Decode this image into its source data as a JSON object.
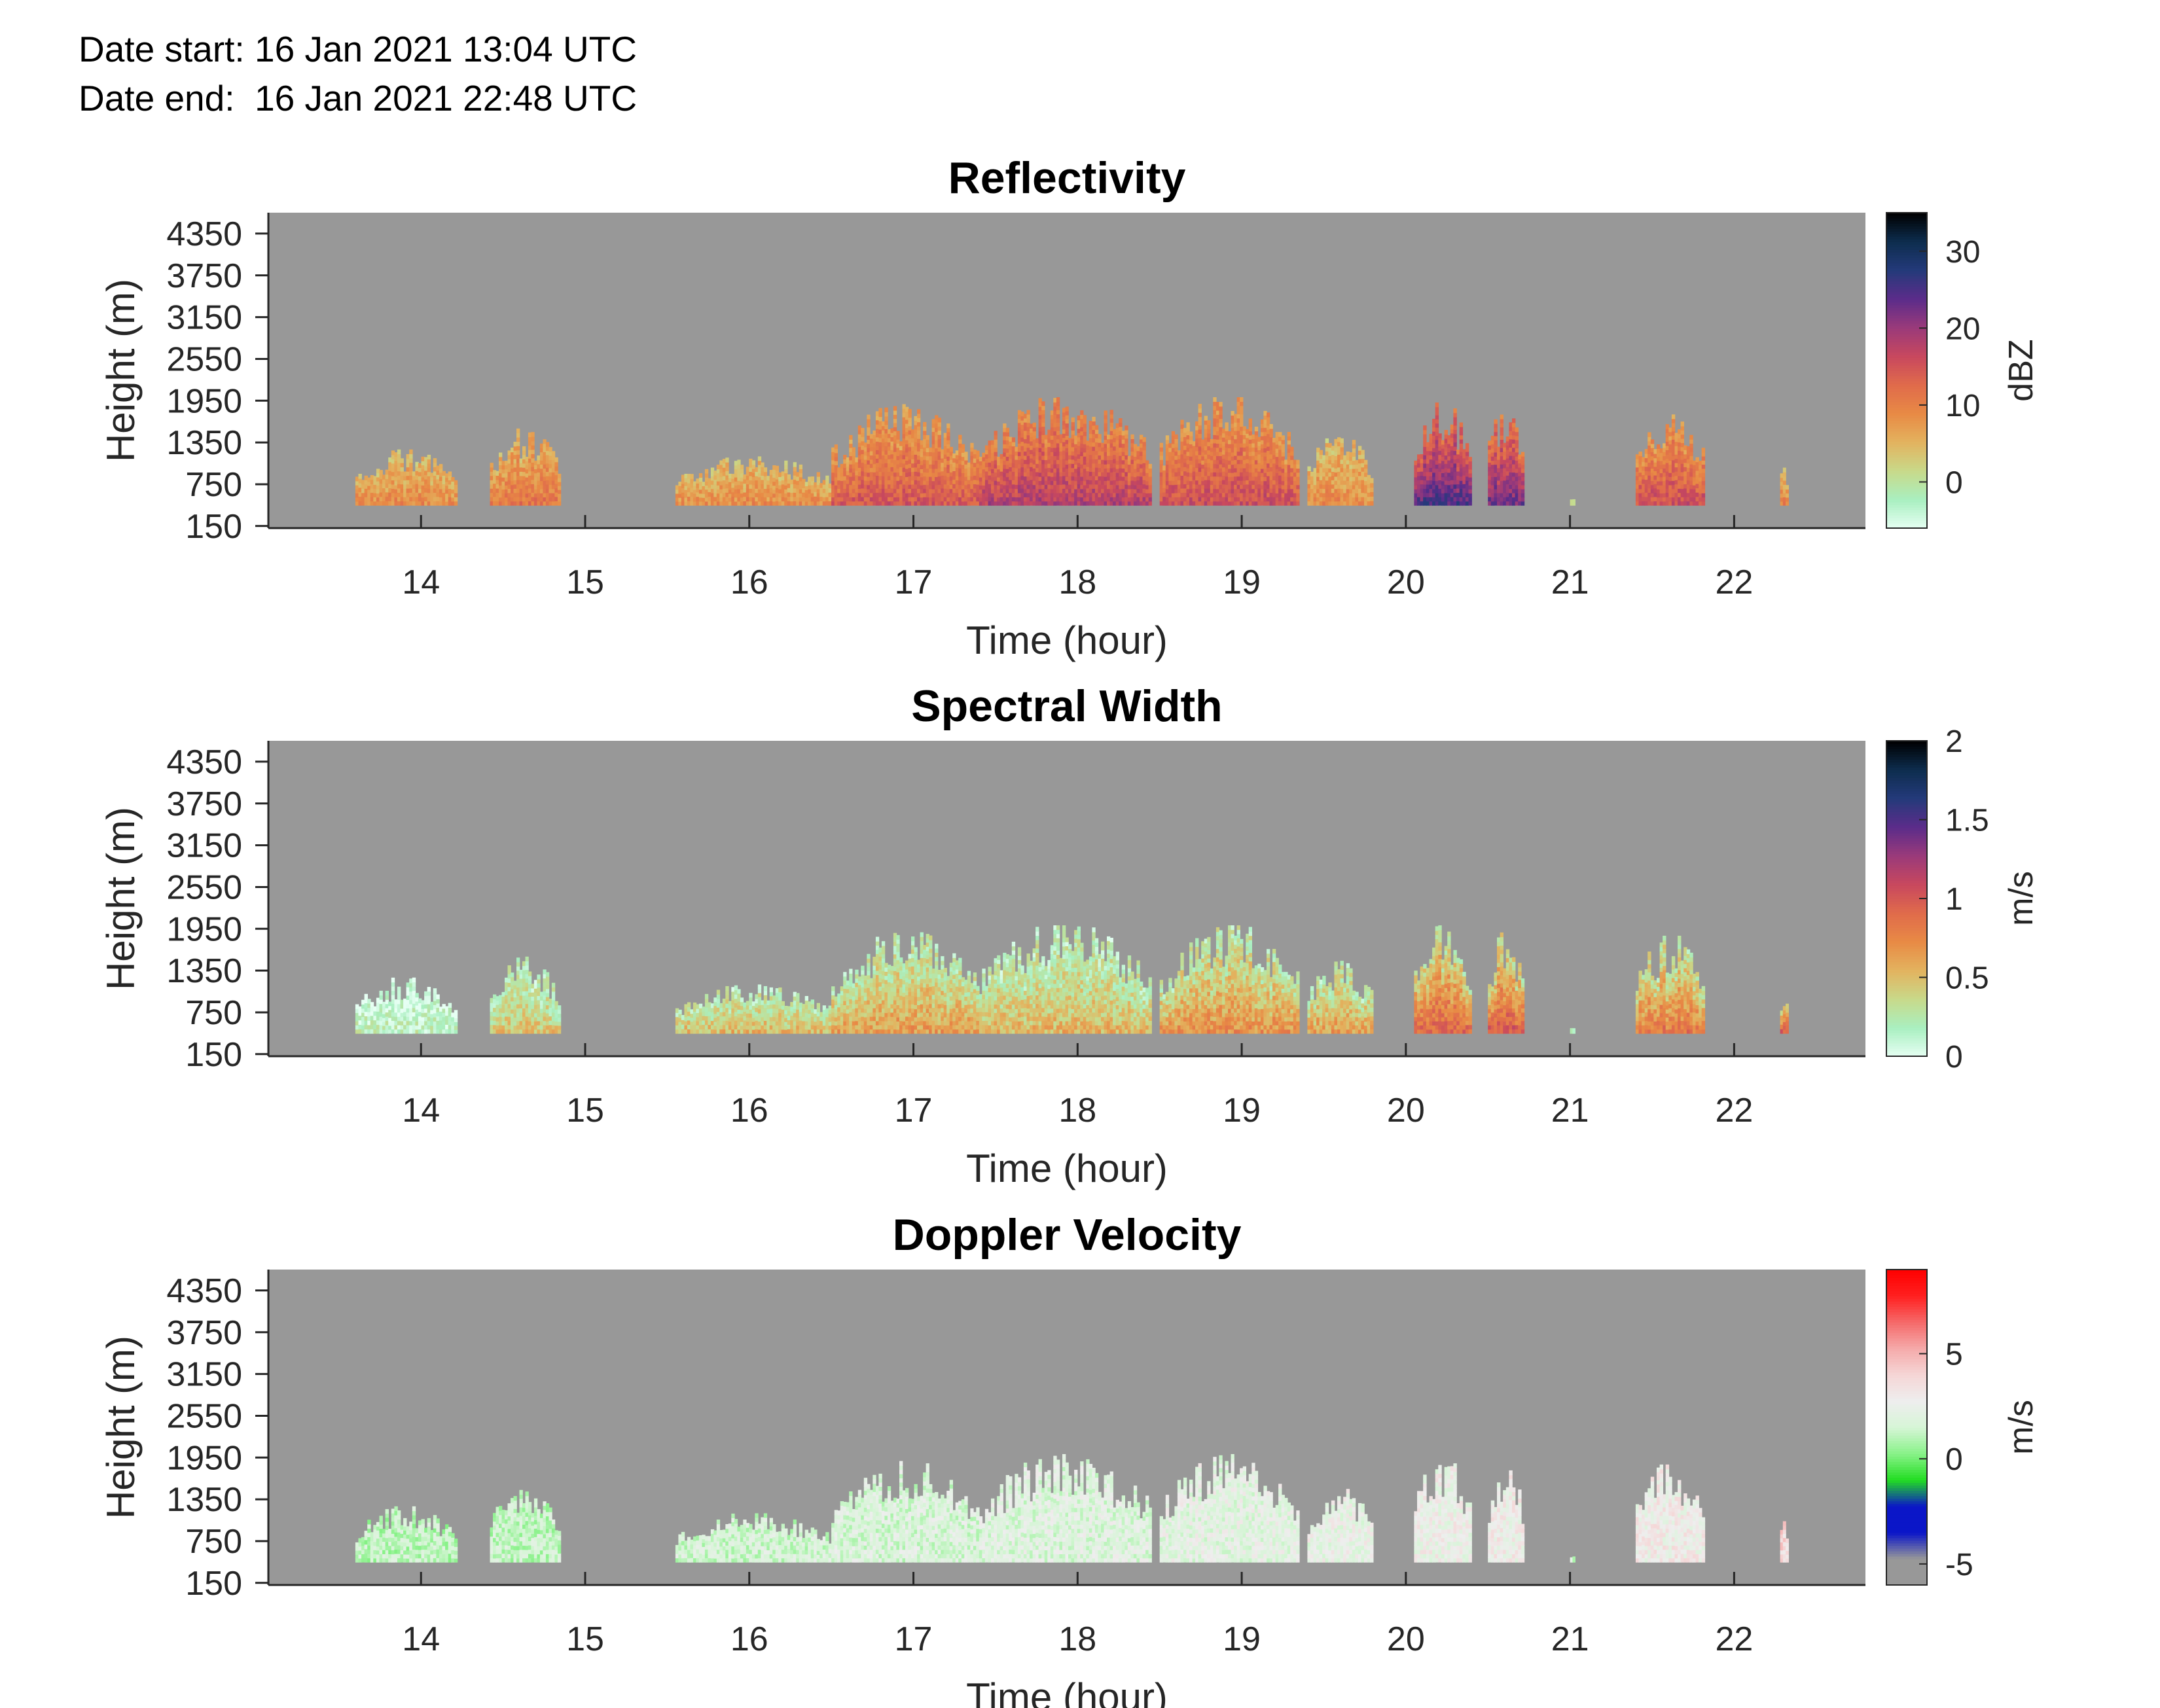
{
  "header": {
    "date_start_label": "Date start:",
    "date_start_value": "16 Jan 2021 13:04 UTC",
    "date_end_label": "Date end:",
    "date_end_value": "16 Jan 2021 22:48 UTC"
  },
  "colors": {
    "background_fill": "#989898",
    "reflectivity_colormap": [
      "#e6fff3",
      "#a9efc0",
      "#c8d98a",
      "#e3b35f",
      "#e88a45",
      "#e06b4b",
      "#c8485e",
      "#9a3a7a",
      "#5b2c8a",
      "#243a7a",
      "#0d2d4e",
      "#000000"
    ],
    "spectral_width_colormap": [
      "#e6fff3",
      "#a9efc0",
      "#c8d98a",
      "#e3b35f",
      "#e88a45",
      "#e06b4b",
      "#c8485e",
      "#9a3a7a",
      "#5b2c8a",
      "#243a7a",
      "#0d2d4e",
      "#000000"
    ],
    "doppler_colormap": [
      "#989898",
      "#989898",
      "#0b16c8",
      "#0b16c8",
      "#22dd22",
      "#88f288",
      "#d6f5d6",
      "#eeeeee",
      "#f5d6d6",
      "#f5aaaa",
      "#f56a6a",
      "#ff2020",
      "#ff0000"
    ]
  },
  "chart_data": [
    {
      "type": "heatmap",
      "title": "Reflectivity",
      "xlabel": "Time (hour)",
      "ylabel": "Height (m)",
      "xlim": [
        13.07,
        22.8
      ],
      "ylim": [
        120,
        4650
      ],
      "x_ticks": [
        "14",
        "15",
        "16",
        "17",
        "18",
        "19",
        "20",
        "21",
        "22"
      ],
      "y_ticks": [
        "150",
        "750",
        "1350",
        "1950",
        "2550",
        "3150",
        "3750",
        "4350"
      ],
      "colorbar": {
        "label": "dBZ",
        "range": [
          -6,
          35
        ],
        "ticks": [
          "0",
          "10",
          "20",
          "30"
        ]
      },
      "echo_segments": [
        {
          "start": 13.6,
          "end": 14.22,
          "top": 1250,
          "typical": 8
        },
        {
          "start": 14.42,
          "end": 14.85,
          "top": 1550,
          "typical": 10
        },
        {
          "start": 15.55,
          "end": 16.5,
          "top": 1150,
          "typical": 8
        },
        {
          "start": 16.5,
          "end": 17.4,
          "top": 1900,
          "typical": 13
        },
        {
          "start": 17.4,
          "end": 18.45,
          "top": 2000,
          "typical": 16
        },
        {
          "start": 18.5,
          "end": 19.35,
          "top": 2000,
          "typical": 14
        },
        {
          "start": 19.4,
          "end": 19.8,
          "top": 1500,
          "typical": 8
        },
        {
          "start": 20.05,
          "end": 20.4,
          "top": 2000,
          "typical": 22
        },
        {
          "start": 20.5,
          "end": 20.72,
          "top": 1900,
          "typical": 20
        },
        {
          "start": 21.0,
          "end": 21.03,
          "top": 550,
          "typical": 0
        },
        {
          "start": 21.4,
          "end": 21.82,
          "top": 1850,
          "typical": 14
        },
        {
          "start": 22.28,
          "end": 22.33,
          "top": 1050,
          "typical": 9
        }
      ]
    },
    {
      "type": "heatmap",
      "title": "Spectral Width",
      "xlabel": "Time (hour)",
      "ylabel": "Height (m)",
      "xlim": [
        13.07,
        22.8
      ],
      "ylim": [
        120,
        4650
      ],
      "x_ticks": [
        "14",
        "15",
        "16",
        "17",
        "18",
        "19",
        "20",
        "21",
        "22"
      ],
      "y_ticks": [
        "150",
        "750",
        "1350",
        "1950",
        "2550",
        "3150",
        "3750",
        "4350"
      ],
      "colorbar": {
        "label": "m/s",
        "range": [
          0,
          2
        ],
        "ticks": [
          "0",
          "0.5",
          "1",
          "1.5",
          "2"
        ]
      },
      "echo_segments": [
        {
          "start": 13.6,
          "end": 14.22,
          "top": 1250,
          "typical": 0.15
        },
        {
          "start": 14.42,
          "end": 14.85,
          "top": 1550,
          "typical": 0.4
        },
        {
          "start": 15.55,
          "end": 16.5,
          "top": 1150,
          "typical": 0.45
        },
        {
          "start": 16.5,
          "end": 17.4,
          "top": 1900,
          "typical": 0.55
        },
        {
          "start": 17.4,
          "end": 18.45,
          "top": 2000,
          "typical": 0.45
        },
        {
          "start": 18.5,
          "end": 19.35,
          "top": 2000,
          "typical": 0.6
        },
        {
          "start": 19.4,
          "end": 19.8,
          "top": 1500,
          "typical": 0.55
        },
        {
          "start": 20.05,
          "end": 20.4,
          "top": 2000,
          "typical": 0.8
        },
        {
          "start": 20.5,
          "end": 20.72,
          "top": 1900,
          "typical": 0.85
        },
        {
          "start": 21.0,
          "end": 21.03,
          "top": 550,
          "typical": 0.2
        },
        {
          "start": 21.4,
          "end": 21.82,
          "top": 1850,
          "typical": 0.7
        },
        {
          "start": 22.28,
          "end": 22.33,
          "top": 1050,
          "typical": 0.9
        }
      ]
    },
    {
      "type": "heatmap",
      "title": "Doppler Velocity",
      "xlabel": "Time (hour)",
      "ylabel": "Height (m)",
      "xlim": [
        13.07,
        22.8
      ],
      "ylim": [
        120,
        4650
      ],
      "x_ticks": [
        "14",
        "15",
        "16",
        "17",
        "18",
        "19",
        "20",
        "21",
        "22"
      ],
      "y_ticks": [
        "150",
        "750",
        "1350",
        "1950",
        "2550",
        "3150",
        "3750",
        "4350"
      ],
      "colorbar": {
        "label": "m/s",
        "range": [
          -6,
          9
        ],
        "ticks": [
          "-5",
          "0",
          "5"
        ]
      },
      "echo_segments": [
        {
          "start": 13.6,
          "end": 14.22,
          "top": 1250,
          "typical": 1.2
        },
        {
          "start": 14.42,
          "end": 14.85,
          "top": 1550,
          "typical": 1.3
        },
        {
          "start": 15.55,
          "end": 16.5,
          "top": 1150,
          "typical": 1.6
        },
        {
          "start": 16.5,
          "end": 17.4,
          "top": 1900,
          "typical": 1.8
        },
        {
          "start": 17.4,
          "end": 18.45,
          "top": 2000,
          "typical": 2.0
        },
        {
          "start": 18.5,
          "end": 19.35,
          "top": 2000,
          "typical": 2.2
        },
        {
          "start": 19.4,
          "end": 19.8,
          "top": 1500,
          "typical": 2.4
        },
        {
          "start": 20.05,
          "end": 20.4,
          "top": 2000,
          "typical": 2.6
        },
        {
          "start": 20.5,
          "end": 20.72,
          "top": 1900,
          "typical": 2.8
        },
        {
          "start": 21.0,
          "end": 21.03,
          "top": 550,
          "typical": 1.5
        },
        {
          "start": 21.4,
          "end": 21.82,
          "top": 1850,
          "typical": 2.9
        },
        {
          "start": 22.28,
          "end": 22.33,
          "top": 1050,
          "typical": 3.8
        }
      ]
    }
  ]
}
